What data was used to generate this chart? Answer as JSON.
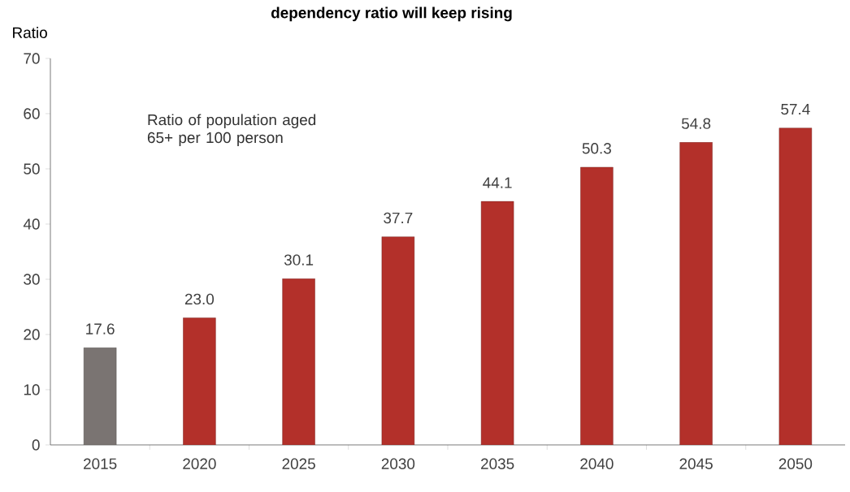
{
  "chart_data": {
    "type": "bar",
    "title": "dependency ratio will keep rising",
    "ylabel": "Ratio",
    "annotations": [
      "Ratio of population aged 65+ per 100 person"
    ],
    "categories": [
      "2015",
      "2020",
      "2025",
      "2030",
      "2035",
      "2040",
      "2045",
      "2050"
    ],
    "values": [
      17.6,
      23.0,
      30.1,
      37.7,
      44.1,
      50.3,
      54.8,
      57.4
    ],
    "value_labels": [
      "17.6",
      "23.0",
      "30.1",
      "37.7",
      "44.1",
      "50.3",
      "54.8",
      "57.4"
    ],
    "colors": [
      "#7a7472",
      "#b3302a",
      "#b3302a",
      "#b3302a",
      "#b3302a",
      "#b3302a",
      "#b3302a",
      "#b3302a"
    ],
    "ylim": [
      0,
      70
    ],
    "yticks": [
      0,
      10,
      20,
      30,
      40,
      50,
      60,
      70
    ],
    "grid": false
  }
}
